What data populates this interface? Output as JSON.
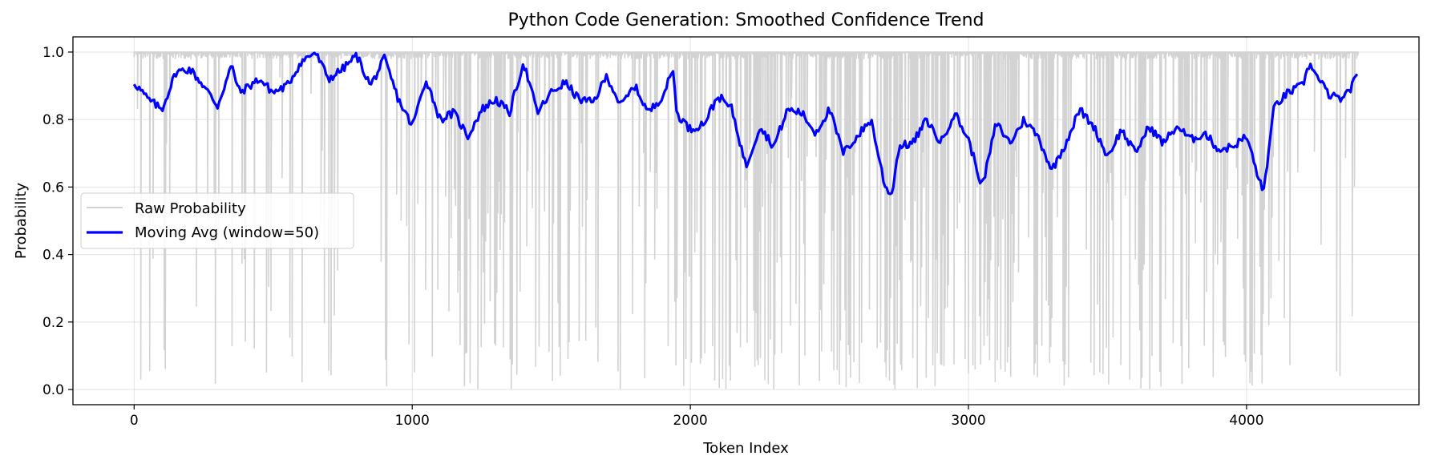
{
  "chart_data": {
    "type": "line",
    "title": "Python Code Generation: Smoothed Confidence Trend",
    "xlabel": "Token Index",
    "ylabel": "Probability",
    "xlim": [
      -220,
      4620
    ],
    "ylim": [
      -0.045,
      1.045
    ],
    "x_ticks": [
      0,
      1000,
      2000,
      3000,
      4000
    ],
    "x_tick_labels": [
      "0",
      "1000",
      "2000",
      "3000",
      "4000"
    ],
    "y_ticks": [
      0.0,
      0.2,
      0.4,
      0.6,
      0.8,
      1.0
    ],
    "y_tick_labels": [
      "0.0",
      "0.2",
      "0.4",
      "0.6",
      "0.8",
      "1.0"
    ],
    "grid": true,
    "legend_position": "center-left",
    "series": [
      {
        "name": "Raw Probability",
        "color": "#d3d3d3",
        "style": "dense noisy raw token probabilities, 0 to 4400 tokens, upper envelope near 1.0, frequent dips toward 0.0",
        "x_range": [
          0,
          4400
        ],
        "upper_envelope": 1.0,
        "lower_envelope_points": [
          [
            0,
            0.0
          ],
          [
            500,
            0.05
          ],
          [
            1000,
            0.1
          ],
          [
            1200,
            0.0
          ],
          [
            1500,
            0.0
          ],
          [
            2000,
            0.0
          ],
          [
            2500,
            0.0
          ],
          [
            3000,
            0.0
          ],
          [
            3500,
            0.0
          ],
          [
            4000,
            0.0
          ],
          [
            4100,
            0.0
          ],
          [
            4400,
            0.03
          ]
        ]
      },
      {
        "name": "Moving Avg (window=50)",
        "color": "#0000ff",
        "x": [
          0,
          50,
          100,
          150,
          200,
          250,
          300,
          350,
          380,
          450,
          500,
          550,
          600,
          650,
          700,
          750,
          800,
          850,
          900,
          950,
          1000,
          1050,
          1100,
          1150,
          1200,
          1250,
          1300,
          1350,
          1400,
          1450,
          1500,
          1550,
          1600,
          1650,
          1700,
          1750,
          1800,
          1850,
          1900,
          1940,
          1950,
          2000,
          2050,
          2100,
          2150,
          2200,
          2250,
          2300,
          2350,
          2400,
          2450,
          2500,
          2550,
          2600,
          2650,
          2700,
          2725,
          2750,
          2800,
          2850,
          2900,
          2950,
          3000,
          3050,
          3100,
          3150,
          3200,
          3250,
          3300,
          3350,
          3400,
          3450,
          3500,
          3550,
          3600,
          3650,
          3700,
          3750,
          3800,
          3850,
          3900,
          3950,
          4000,
          4060,
          4100,
          4150,
          4200,
          4230,
          4250,
          4300,
          4350,
          4400
        ],
        "values": [
          0.91,
          0.86,
          0.83,
          0.94,
          0.95,
          0.9,
          0.84,
          0.96,
          0.88,
          0.92,
          0.88,
          0.9,
          0.97,
          1.0,
          0.92,
          0.95,
          0.99,
          0.9,
          0.98,
          0.86,
          0.78,
          0.92,
          0.8,
          0.82,
          0.75,
          0.83,
          0.86,
          0.82,
          0.97,
          0.82,
          0.88,
          0.91,
          0.86,
          0.85,
          0.93,
          0.84,
          0.9,
          0.82,
          0.87,
          0.95,
          0.82,
          0.77,
          0.79,
          0.87,
          0.83,
          0.66,
          0.78,
          0.72,
          0.83,
          0.82,
          0.76,
          0.83,
          0.7,
          0.75,
          0.8,
          0.6,
          0.58,
          0.72,
          0.73,
          0.8,
          0.73,
          0.82,
          0.74,
          0.6,
          0.79,
          0.73,
          0.8,
          0.75,
          0.65,
          0.73,
          0.83,
          0.78,
          0.69,
          0.77,
          0.7,
          0.78,
          0.73,
          0.78,
          0.74,
          0.76,
          0.71,
          0.72,
          0.75,
          0.58,
          0.84,
          0.88,
          0.9,
          0.97,
          0.93,
          0.87,
          0.86,
          0.93
        ]
      }
    ]
  }
}
